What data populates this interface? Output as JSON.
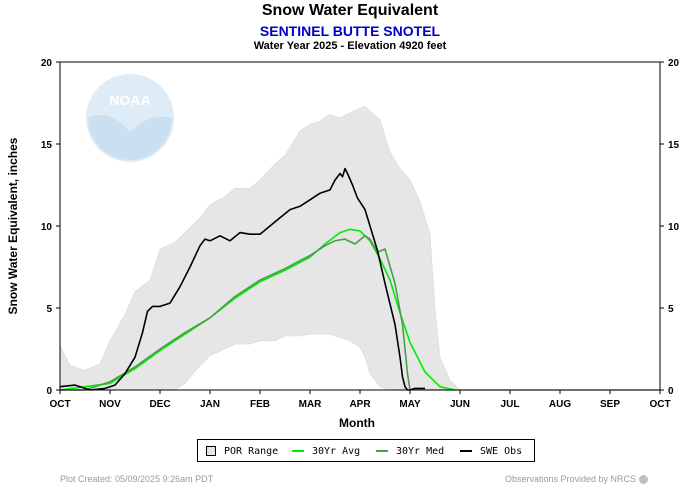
{
  "header": {
    "title": "Snow Water Equivalent",
    "subtitle": "SENTINEL BUTTE SNOTEL",
    "subtitle2": "Water Year 2025 -  Elevation 4920 feet"
  },
  "logo": {
    "text": "NOAA",
    "icon": "noaa-logo"
  },
  "legend": {
    "items": [
      {
        "label": "POR Range",
        "color": "#e6e6e6"
      },
      {
        "label": "30Yr Avg",
        "color": "#00ee00"
      },
      {
        "label": "30Yr Med",
        "color": "#4d9b4d"
      },
      {
        "label": "SWE Obs",
        "color": "#000000"
      }
    ]
  },
  "footer": {
    "left": "Plot Created: 05/09/2025 9:26am PDT",
    "right": "Observations Provided by NRCS"
  },
  "chart_data": {
    "type": "line",
    "title": "Snow Water Equivalent",
    "xlabel": "Month",
    "ylabel": "Snow Water Equivalent, inches",
    "x_ticks": [
      "OCT",
      "NOV",
      "DEC",
      "JAN",
      "FEB",
      "MAR",
      "APR",
      "MAY",
      "JUN",
      "JUL",
      "AUG",
      "SEP",
      "OCT"
    ],
    "y_ticks": [
      0,
      5,
      10,
      15,
      20
    ],
    "xlim": [
      0,
      12
    ],
    "ylim": [
      0,
      20
    ],
    "grid": false,
    "legend_position": "bottom",
    "por_range": {
      "x": [
        0,
        0.2,
        0.5,
        0.8,
        1.0,
        1.3,
        1.5,
        1.8,
        2.0,
        2.3,
        2.5,
        2.8,
        3.0,
        3.3,
        3.5,
        3.8,
        4.0,
        4.3,
        4.5,
        4.8,
        5.0,
        5.2,
        5.4,
        5.6,
        5.8,
        6.0,
        6.1,
        6.2,
        6.4,
        6.6,
        6.8,
        7.0,
        7.2,
        7.4,
        7.5,
        7.6,
        7.8,
        8.0
      ],
      "max": [
        2.7,
        1.5,
        1.2,
        1.6,
        3.0,
        4.6,
        6.0,
        6.7,
        8.6,
        9.0,
        9.6,
        10.5,
        11.3,
        11.8,
        12.3,
        12.3,
        12.8,
        13.8,
        14.3,
        15.8,
        16.2,
        16.4,
        16.8,
        16.6,
        16.9,
        17.2,
        17.3,
        17.0,
        16.5,
        14.5,
        13.5,
        12.8,
        11.5,
        9.5,
        5.0,
        2.0,
        0.6,
        0.0
      ],
      "min": [
        0.0,
        0.0,
        0.0,
        0.0,
        0.0,
        0.0,
        0.0,
        0.0,
        0.0,
        0.0,
        0.4,
        1.5,
        2.1,
        2.5,
        2.8,
        2.8,
        3.0,
        3.0,
        3.3,
        3.3,
        3.4,
        3.4,
        3.4,
        3.2,
        3.0,
        2.6,
        2.0,
        1.0,
        0.2,
        0.0,
        0.0,
        0.0,
        0.0,
        0.0,
        0.0,
        0.0,
        0.0,
        0.0
      ]
    },
    "series": [
      {
        "name": "30Yr Avg",
        "color": "#00ee00",
        "x": [
          0,
          0.5,
          1.0,
          1.5,
          2.0,
          2.5,
          3.0,
          3.5,
          4.0,
          4.5,
          5.0,
          5.3,
          5.6,
          5.8,
          6.0,
          6.2,
          6.4,
          6.6,
          6.8,
          7.0,
          7.3,
          7.6,
          7.9
        ],
        "y": [
          0.0,
          0.2,
          0.4,
          1.3,
          2.4,
          3.4,
          4.4,
          5.6,
          6.6,
          7.3,
          8.1,
          8.9,
          9.6,
          9.8,
          9.7,
          9.1,
          8.0,
          6.7,
          4.7,
          2.9,
          1.1,
          0.2,
          0.0
        ]
      },
      {
        "name": "30Yr Med",
        "color": "#4d9b4d",
        "x": [
          0,
          0.5,
          1.0,
          1.5,
          2.0,
          2.5,
          3.0,
          3.5,
          4.0,
          4.5,
          5.0,
          5.3,
          5.5,
          5.7,
          5.9,
          6.1,
          6.2,
          6.35,
          6.5,
          6.7,
          6.85,
          6.95,
          7.0
        ],
        "y": [
          0.0,
          0.0,
          0.5,
          1.4,
          2.5,
          3.5,
          4.4,
          5.7,
          6.7,
          7.4,
          8.2,
          8.8,
          9.1,
          9.2,
          8.9,
          9.4,
          9.2,
          8.4,
          8.6,
          6.5,
          4.0,
          1.0,
          0.0
        ]
      },
      {
        "name": "SWE Obs",
        "color": "#000000",
        "x": [
          0,
          0.3,
          0.6,
          0.9,
          1.1,
          1.3,
          1.5,
          1.65,
          1.75,
          1.85,
          2.0,
          2.2,
          2.4,
          2.6,
          2.8,
          2.9,
          3.0,
          3.2,
          3.4,
          3.6,
          3.8,
          4.0,
          4.2,
          4.4,
          4.6,
          4.8,
          5.0,
          5.2,
          5.4,
          5.5,
          5.6,
          5.65,
          5.7,
          5.75,
          5.85,
          5.95,
          6.1,
          6.2,
          6.35,
          6.5,
          6.7,
          6.8,
          6.85,
          6.9,
          6.95,
          7.0,
          7.1,
          7.3
        ],
        "y": [
          0.2,
          0.3,
          0.0,
          0.1,
          0.3,
          1.0,
          2.0,
          3.5,
          4.8,
          5.1,
          5.1,
          5.3,
          6.3,
          7.5,
          8.8,
          9.2,
          9.1,
          9.4,
          9.1,
          9.6,
          9.5,
          9.5,
          10.0,
          10.5,
          11.0,
          11.2,
          11.6,
          12.0,
          12.2,
          12.8,
          13.2,
          13.0,
          13.5,
          13.2,
          12.5,
          11.7,
          11.0,
          10.0,
          8.5,
          6.5,
          4.0,
          2.0,
          0.8,
          0.2,
          0.0,
          0.0,
          0.1,
          0.1
        ]
      }
    ]
  }
}
